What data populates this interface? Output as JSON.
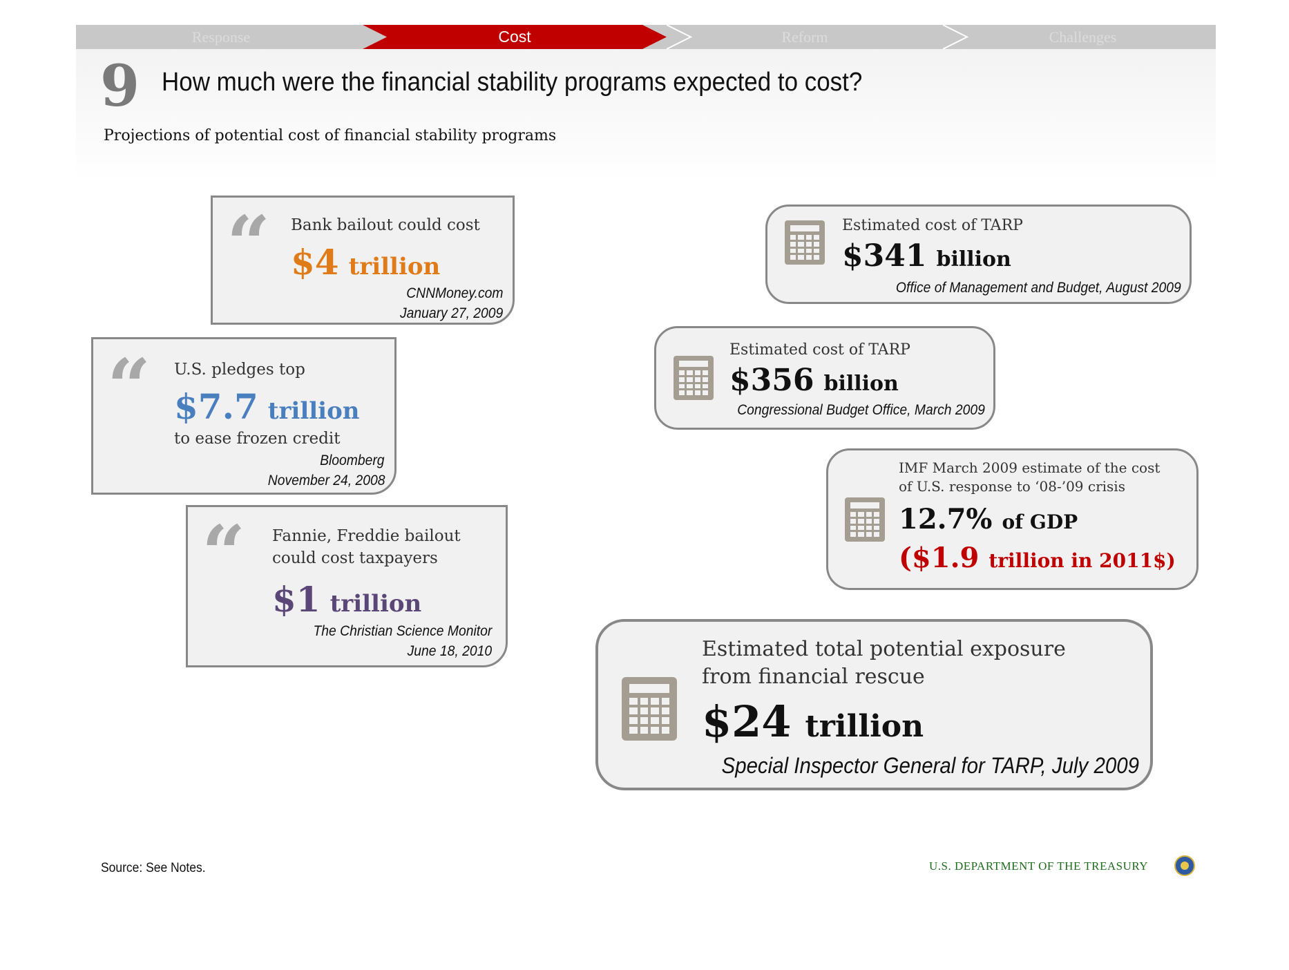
{
  "nav": {
    "tabs": [
      {
        "label": "Response",
        "active": false
      },
      {
        "label": "Cost",
        "active": true
      },
      {
        "label": "Reform",
        "active": false
      },
      {
        "label": "Challenges",
        "active": false
      }
    ]
  },
  "header": {
    "number": "9",
    "title": "How much were the financial stability programs expected to cost?",
    "subtitle": "Projections of potential cost of financial stability programs"
  },
  "quotes": [
    {
      "lead": "Bank bailout could cost",
      "amount": "$4",
      "unit": "trillion",
      "source": "CNNMoney.com",
      "date": "January 27, 2009",
      "color": "#e07b1a"
    },
    {
      "lead": "U.S. pledges top",
      "amount": "$7.7",
      "unit": "trillion",
      "after": "to ease frozen credit",
      "source": "Bloomberg",
      "date": "November 24, 2008",
      "color": "#4a7fbf"
    },
    {
      "lead_line1": "Fannie, Freddie bailout",
      "lead_line2": "could cost taxpayers",
      "amount": "$1",
      "unit": "trillion",
      "source": "The Christian Science Monitor",
      "date": "June 18, 2010",
      "color": "#5a4677"
    }
  ],
  "estimates": [
    {
      "label": "Estimated cost of TARP",
      "amount": "$341",
      "unit": "billion",
      "source": "Office of Management and Budget, August 2009"
    },
    {
      "label": "Estimated cost of TARP",
      "amount": "$356",
      "unit": "billion",
      "source": "Congressional Budget Office, March 2009"
    },
    {
      "label_line1": "IMF March 2009 estimate of the cost",
      "label_line2": "of U.S. response to ‘08-’09 crisis",
      "amount": "12.7%",
      "unit": "of GDP",
      "alt_amount": "($1.9",
      "alt_unit": "trillion in 2011$)",
      "alt_color": "#c00000"
    },
    {
      "label_line1": "Estimated total potential exposure",
      "label_line2": "from financial rescue",
      "amount": "$24",
      "unit": "trillion",
      "source": "Special Inspector General for TARP, July 2009"
    }
  ],
  "footer": {
    "source": "Source: See Notes.",
    "agency": "U.S. DEPARTMENT OF THE TREASURY"
  },
  "icons": [
    "quote-icon",
    "calculator-icon",
    "treasury-seal-icon"
  ]
}
